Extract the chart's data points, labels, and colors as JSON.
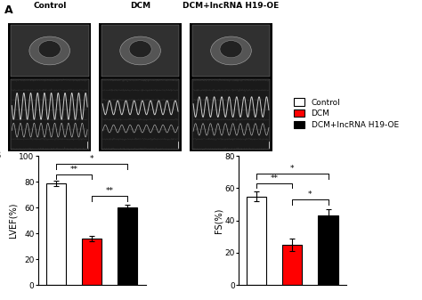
{
  "panel_A_labels": [
    "Control",
    "DCM",
    "DCM+lncRNA H19-OE"
  ],
  "legend_labels": [
    "Control",
    "DCM",
    "DCM+lncRNA H19-OE"
  ],
  "legend_colors": [
    "white",
    "red",
    "black"
  ],
  "lvef_values": [
    79,
    36,
    60
  ],
  "lvef_errors": [
    2,
    2,
    2
  ],
  "lvef_ylabel": "LVEF(%)",
  "lvef_ylim": [
    0,
    100
  ],
  "lvef_yticks": [
    0,
    20,
    40,
    60,
    80,
    100
  ],
  "fs_values": [
    55,
    25,
    43
  ],
  "fs_errors": [
    3,
    4,
    4
  ],
  "fs_ylabel": "FS(%)",
  "fs_ylim": [
    0,
    80
  ],
  "fs_yticks": [
    0,
    20,
    40,
    60,
    80
  ],
  "bar_colors": [
    "white",
    "red",
    "black"
  ],
  "bar_edgecolor": "black",
  "background_color": "white",
  "bar_width": 0.55
}
